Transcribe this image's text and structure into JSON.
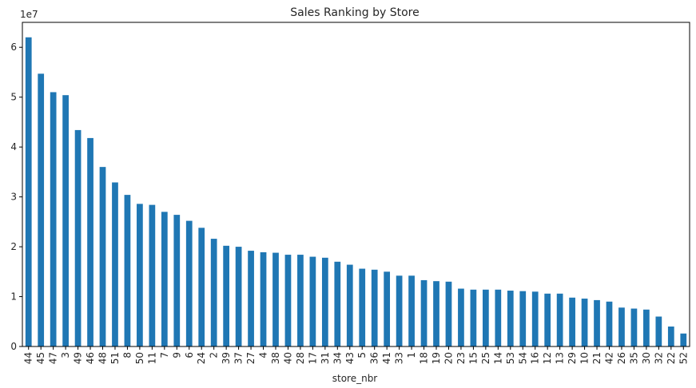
{
  "chart_data": {
    "type": "bar",
    "title": "Sales Ranking by Store",
    "xlabel": "store_nbr",
    "ylabel": "",
    "y_offset_text": "1e7",
    "y_scale_factor": 10000000,
    "ylim": [
      0,
      65000000
    ],
    "yticks": [
      0,
      10000000,
      20000000,
      30000000,
      40000000,
      50000000,
      60000000
    ],
    "ytick_labels": [
      "0",
      "1",
      "2",
      "3",
      "4",
      "5",
      "6"
    ],
    "grid": false,
    "legend": "none",
    "bar_color": "#1f77b4",
    "categories": [
      "44",
      "45",
      "47",
      "3",
      "49",
      "46",
      "48",
      "51",
      "8",
      "50",
      "11",
      "7",
      "9",
      "6",
      "24",
      "2",
      "39",
      "37",
      "27",
      "4",
      "38",
      "40",
      "28",
      "17",
      "31",
      "34",
      "43",
      "5",
      "36",
      "41",
      "33",
      "1",
      "18",
      "19",
      "20",
      "23",
      "15",
      "25",
      "14",
      "53",
      "54",
      "16",
      "12",
      "13",
      "29",
      "10",
      "21",
      "42",
      "26",
      "35",
      "30",
      "32",
      "22",
      "52"
    ],
    "values": [
      62000000,
      54700000,
      51000000,
      50400000,
      43400000,
      41800000,
      36000000,
      32900000,
      30400000,
      28600000,
      28400000,
      27000000,
      26400000,
      25200000,
      23800000,
      21600000,
      20200000,
      20000000,
      19200000,
      18900000,
      18800000,
      18400000,
      18400000,
      18000000,
      17800000,
      17000000,
      16400000,
      15600000,
      15400000,
      15000000,
      14200000,
      14200000,
      13300000,
      13100000,
      13000000,
      11600000,
      11400000,
      11400000,
      11400000,
      11200000,
      11100000,
      11000000,
      10600000,
      10600000,
      9800000,
      9600000,
      9300000,
      9000000,
      7800000,
      7600000,
      7400000,
      6000000,
      4000000,
      2600000
    ]
  }
}
